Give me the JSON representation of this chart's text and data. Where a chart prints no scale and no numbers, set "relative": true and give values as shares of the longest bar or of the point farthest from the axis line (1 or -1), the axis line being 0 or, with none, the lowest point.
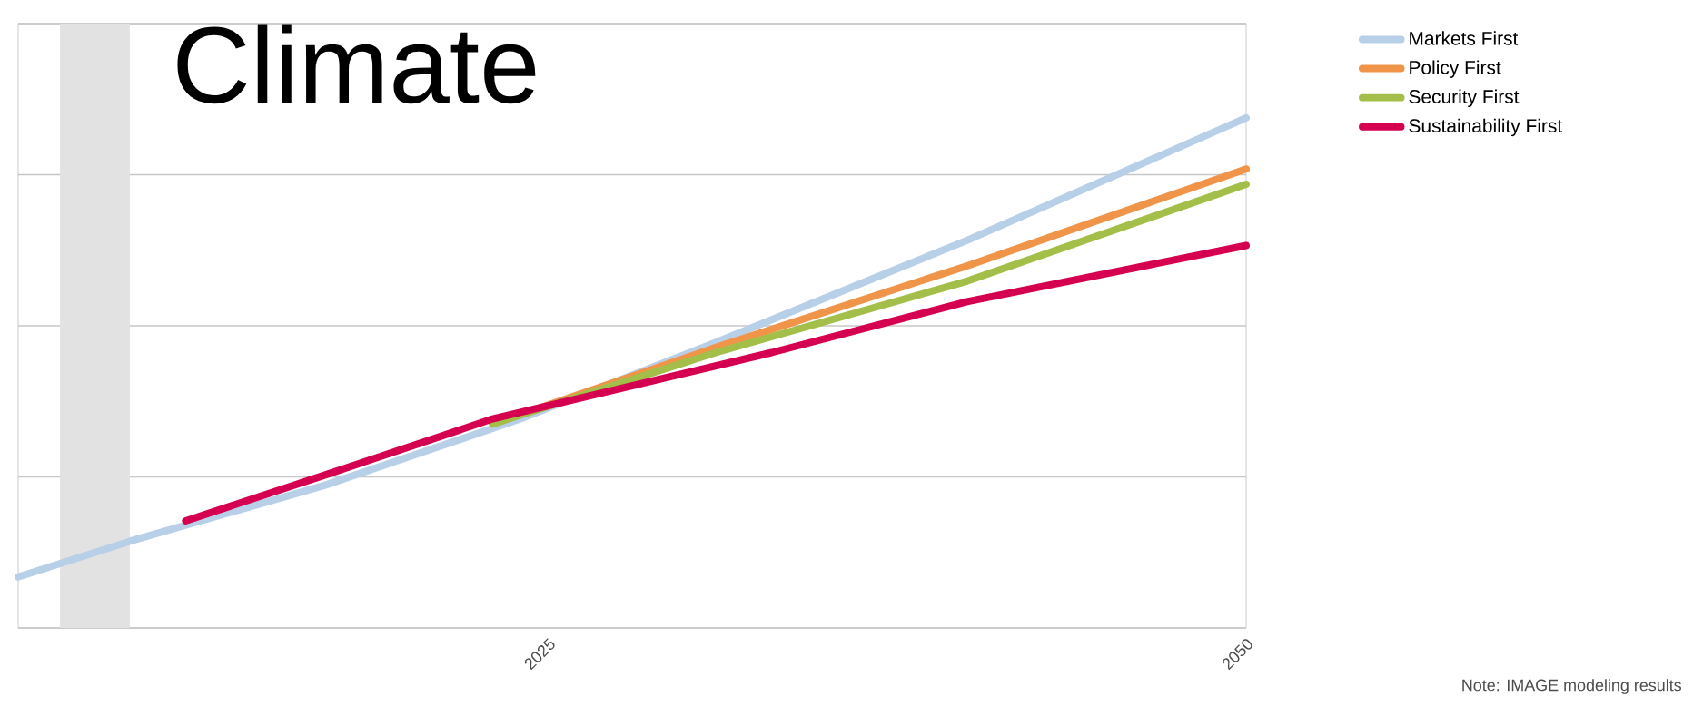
{
  "chart_data": {
    "type": "line",
    "title": "Climate",
    "relative": true,
    "xlim": [
      2006,
      2050
    ],
    "xticks": [
      2025,
      2050
    ],
    "grid": "y",
    "legend": "top right",
    "series": [
      {
        "name": "Markets First",
        "color": "#b8cfe8",
        "x": [
          2006,
          2010,
          2017,
          2024,
          2031,
          2040,
          2050
        ],
        "values": [
          0.1,
          0.17,
          0.28,
          0.41,
          0.56,
          0.76,
          1.0
        ]
      },
      {
        "name": "Policy First",
        "color": "#f0944a",
        "x": [
          2023,
          2031,
          2040,
          2050
        ],
        "values": [
          0.4,
          0.55,
          0.71,
          0.9
        ]
      },
      {
        "name": "Security First",
        "color": "#a3bf4a",
        "x": [
          2023,
          2031,
          2040,
          2050
        ],
        "values": [
          0.4,
          0.54,
          0.68,
          0.87
        ]
      },
      {
        "name": "Sustainability First",
        "color": "#d5004f",
        "x": [
          2012,
          2017,
          2023,
          2033,
          2040,
          2050
        ],
        "values": [
          0.21,
          0.3,
          0.41,
          0.54,
          0.64,
          0.75
        ]
      }
    ],
    "bands": [
      {
        "axis": "x",
        "from": 2007.5,
        "to": 2010,
        "color": "#e2e2e2"
      }
    ],
    "annotations": [
      "Note: IMAGE modeling results"
    ]
  }
}
